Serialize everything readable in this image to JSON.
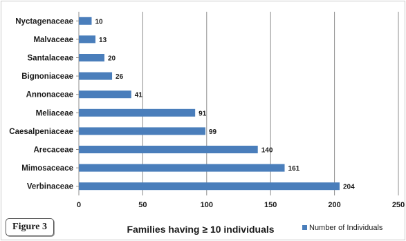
{
  "figure_label": "Figure 3",
  "chart_data": {
    "type": "bar",
    "orientation": "horizontal",
    "categories": [
      "Nyctagenaceae",
      "Malvaceae",
      "Santalaceae",
      "Bignoniaceae",
      "Annonaceae",
      "Meliaceae",
      "Caesalpeniaceae",
      "Arecaceae",
      "Mimosaceace",
      "Verbinaceae"
    ],
    "series": [
      {
        "name": "Number of Individuals",
        "values": [
          10,
          13,
          20,
          26,
          41,
          91,
          99,
          140,
          161,
          204
        ],
        "color": "#4a7ebb"
      }
    ],
    "xlabel": "Families having ≥ 10 individuals",
    "xlim": [
      0,
      250
    ],
    "xticks": [
      0,
      50,
      100,
      150,
      200,
      250
    ],
    "grid": true,
    "legend_position": "bottom-right"
  }
}
